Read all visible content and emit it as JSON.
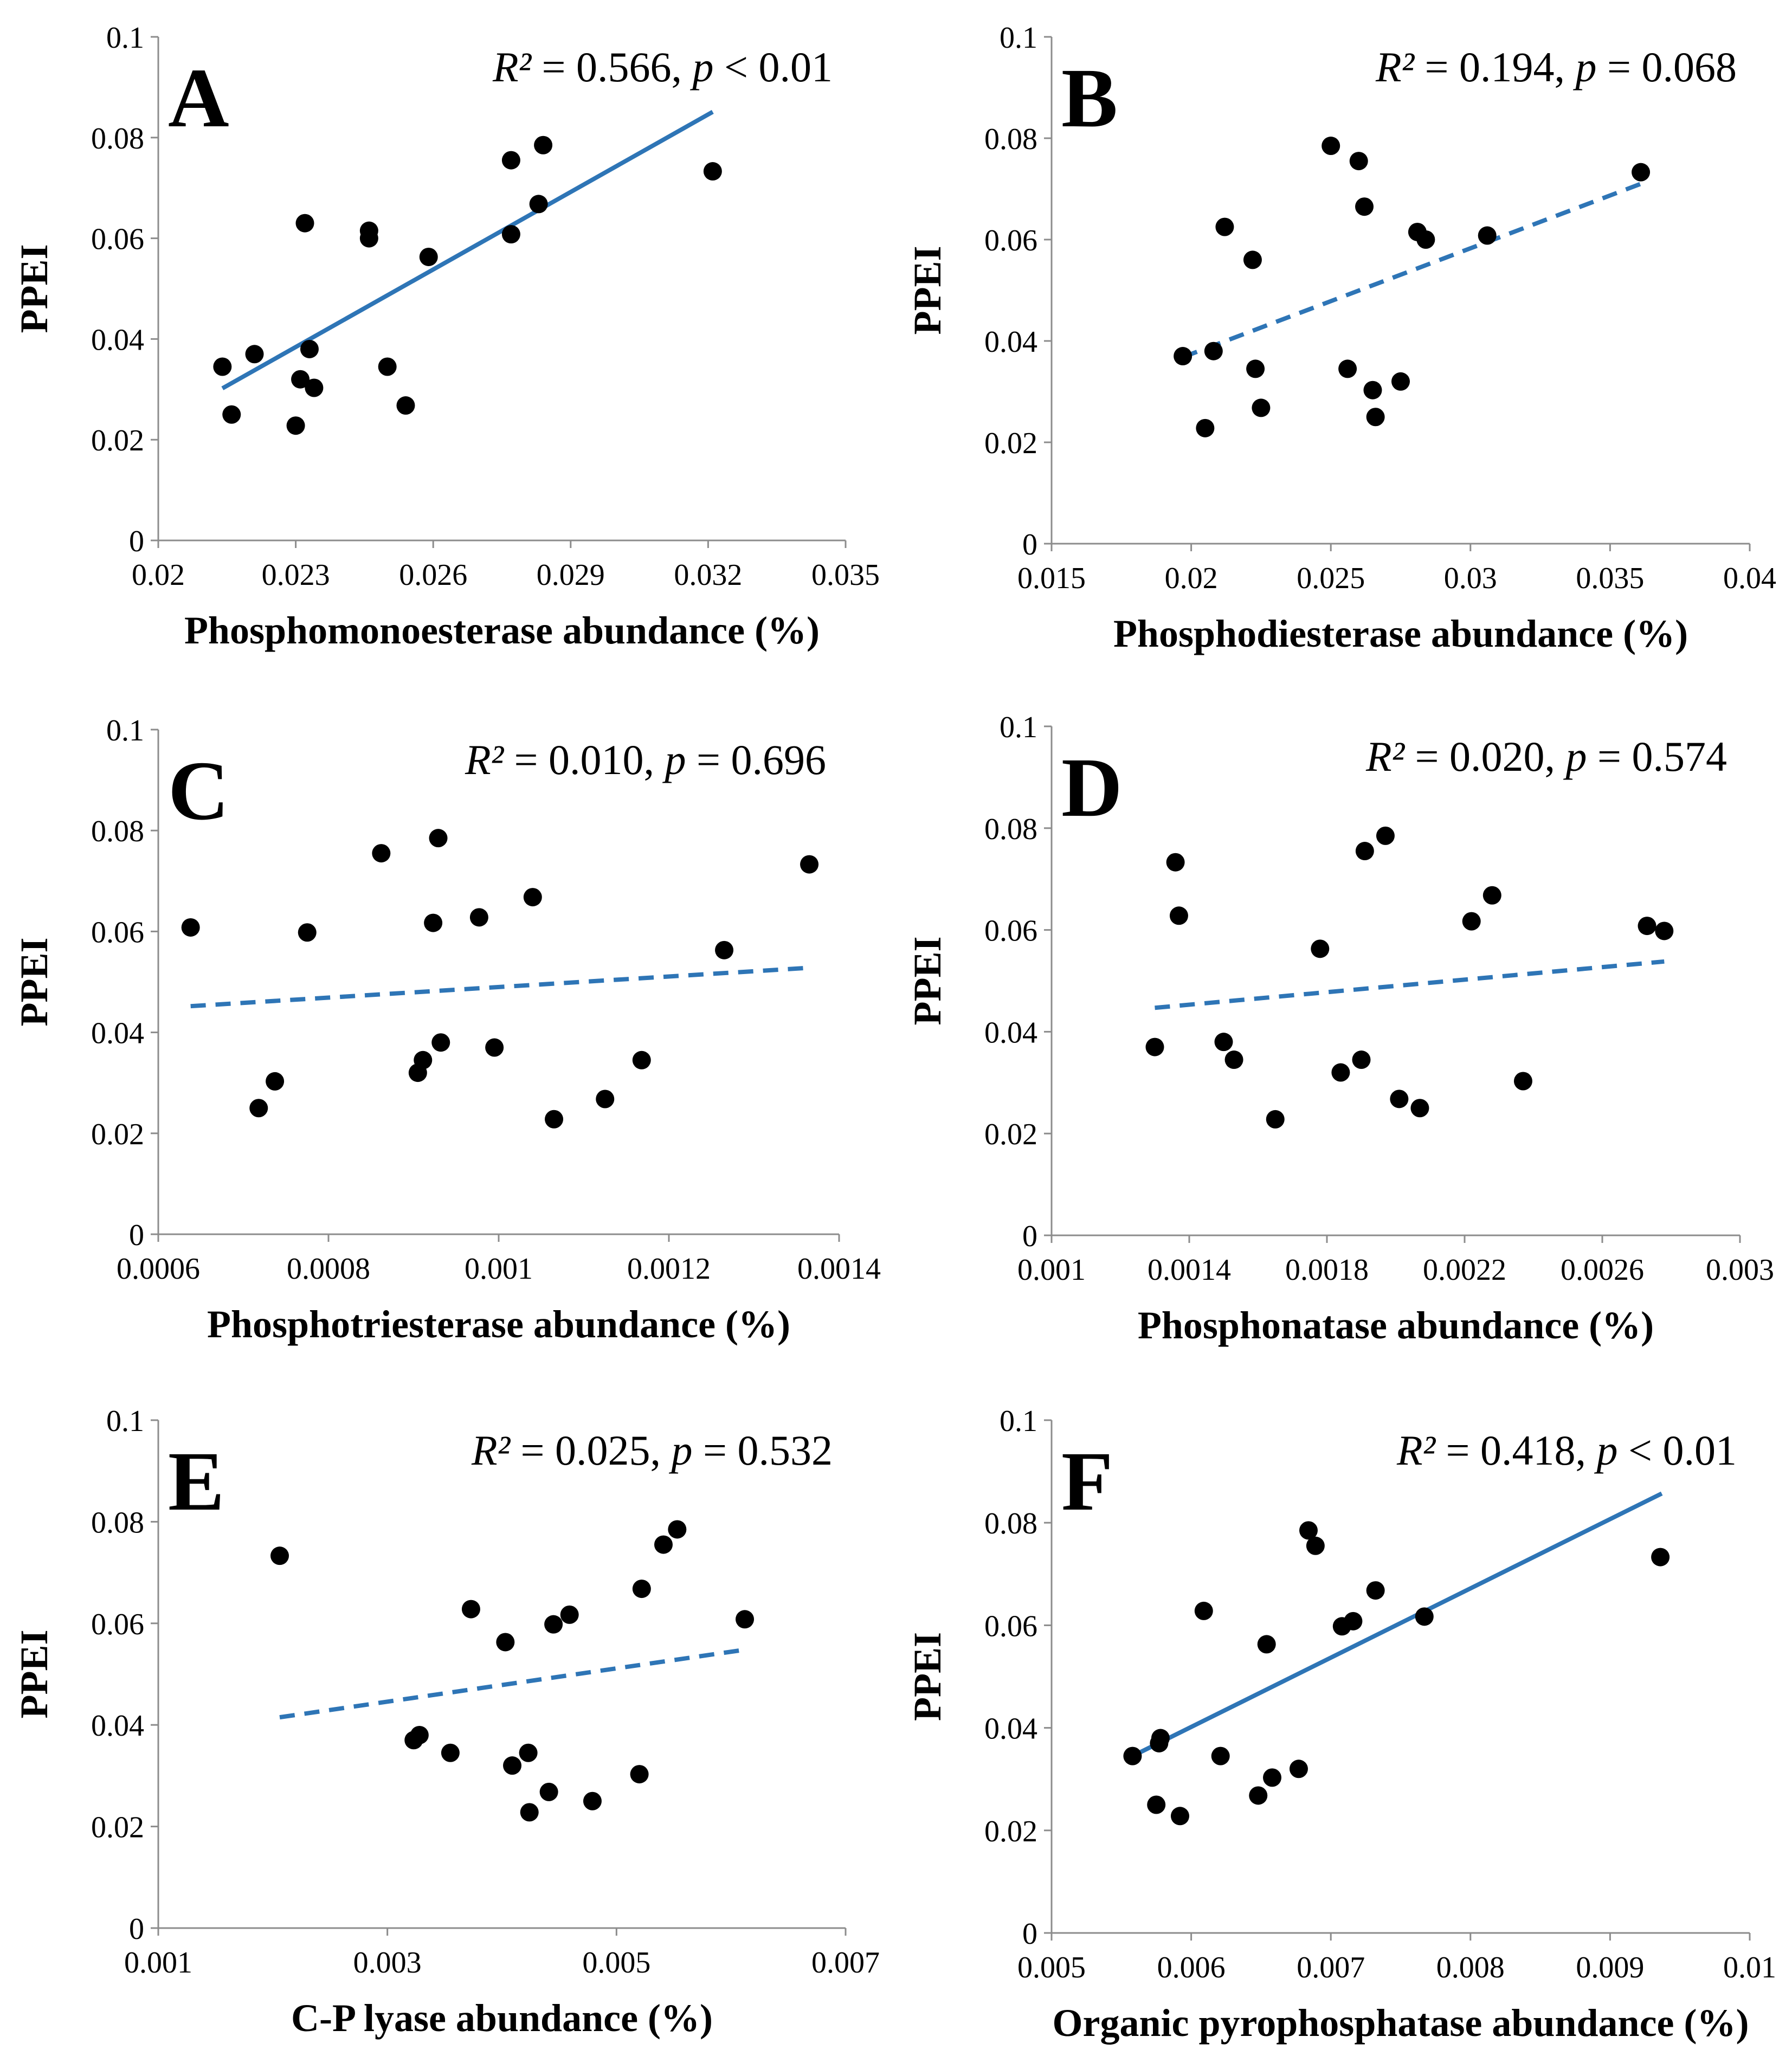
{
  "figure": {
    "type": "scatter-panels",
    "accent_color": "#2e75b6",
    "point_color": "#000000"
  },
  "chart_data": [
    {
      "type": "scatter",
      "panel": "A",
      "xlabel": "Phosphomonoesterase abundance (%)",
      "ylabel": "PPEI",
      "xlim": [
        0.02,
        0.035
      ],
      "ylim": [
        0,
        0.1
      ],
      "xticks": [
        "0.02",
        "0.023",
        "0.026",
        "0.029",
        "0.032",
        "0.035"
      ],
      "xtick_values": [
        0.02,
        0.023,
        0.026,
        0.029,
        0.032,
        0.035
      ],
      "yticks": [
        "0",
        "0.02",
        "0.04",
        "0.06",
        "0.08",
        "0.1"
      ],
      "ytick_values": [
        0,
        0.02,
        0.04,
        0.06,
        0.08,
        0.1
      ],
      "stat": {
        "r2_value": "0.566",
        "p_op": "<",
        "p_value": "0.01"
      },
      "trend": {
        "style": "solid",
        "x": [
          0.0214,
          0.0321
        ],
        "y": [
          0.0302,
          0.0851
        ]
      },
      "points": [
        {
          "x": 0.0214,
          "y": 0.0345
        },
        {
          "x": 0.0216,
          "y": 0.025
        },
        {
          "x": 0.0221,
          "y": 0.037
        },
        {
          "x": 0.023,
          "y": 0.0228
        },
        {
          "x": 0.0231,
          "y": 0.032
        },
        {
          "x": 0.0232,
          "y": 0.063
        },
        {
          "x": 0.0233,
          "y": 0.038
        },
        {
          "x": 0.0234,
          "y": 0.0303
        },
        {
          "x": 0.0246,
          "y": 0.06
        },
        {
          "x": 0.0246,
          "y": 0.0615
        },
        {
          "x": 0.025,
          "y": 0.0345
        },
        {
          "x": 0.0254,
          "y": 0.0268
        },
        {
          "x": 0.0259,
          "y": 0.0563
        },
        {
          "x": 0.0277,
          "y": 0.0755
        },
        {
          "x": 0.0277,
          "y": 0.0608
        },
        {
          "x": 0.0283,
          "y": 0.0668
        },
        {
          "x": 0.0284,
          "y": 0.0785
        },
        {
          "x": 0.0321,
          "y": 0.0733
        }
      ]
    },
    {
      "type": "scatter",
      "panel": "B",
      "xlabel": "Phosphodiesterase  abundance (%)",
      "ylabel": "PPEI",
      "xlim": [
        0.015,
        0.04
      ],
      "ylim": [
        0,
        0.1
      ],
      "xticks": [
        "0.015",
        "0.02",
        "0.025",
        "0.03",
        "0.035",
        "0.04"
      ],
      "xtick_values": [
        0.015,
        0.02,
        0.025,
        0.03,
        0.035,
        0.04
      ],
      "yticks": [
        "0",
        "0.02",
        "0.04",
        "0.06",
        "0.08",
        "0.1"
      ],
      "ytick_values": [
        0,
        0.02,
        0.04,
        0.06,
        0.08,
        0.1
      ],
      "stat": {
        "r2_value": "0.194",
        "p_op": "=",
        "p_value": "0.068"
      },
      "trend": {
        "style": "dashed",
        "x": [
          0.0197,
          0.0361
        ],
        "y": [
          0.0368,
          0.071
        ]
      },
      "points": [
        {
          "x": 0.0197,
          "y": 0.037
        },
        {
          "x": 0.0205,
          "y": 0.0228
        },
        {
          "x": 0.0208,
          "y": 0.038
        },
        {
          "x": 0.0212,
          "y": 0.0625
        },
        {
          "x": 0.0222,
          "y": 0.056
        },
        {
          "x": 0.0223,
          "y": 0.0345
        },
        {
          "x": 0.0225,
          "y": 0.0268
        },
        {
          "x": 0.025,
          "y": 0.0785
        },
        {
          "x": 0.0256,
          "y": 0.0345
        },
        {
          "x": 0.026,
          "y": 0.0755
        },
        {
          "x": 0.0262,
          "y": 0.0665
        },
        {
          "x": 0.0265,
          "y": 0.0303
        },
        {
          "x": 0.0266,
          "y": 0.025
        },
        {
          "x": 0.0275,
          "y": 0.032
        },
        {
          "x": 0.0281,
          "y": 0.0615
        },
        {
          "x": 0.0284,
          "y": 0.06
        },
        {
          "x": 0.0306,
          "y": 0.0608
        },
        {
          "x": 0.0361,
          "y": 0.0733
        }
      ]
    },
    {
      "type": "scatter",
      "panel": "C",
      "xlabel": "Phosphotriesterase  abundance (%)",
      "ylabel": "PPEI",
      "xlim": [
        0.0006,
        0.0014
      ],
      "ylim": [
        0,
        0.1
      ],
      "xticks": [
        "0.0006",
        "0.0008",
        "0.001",
        "0.0012",
        "0.0014"
      ],
      "xtick_values": [
        0.0006,
        0.0008,
        0.001,
        0.0012,
        0.0014
      ],
      "yticks": [
        "0",
        "0.02",
        "0.04",
        "0.06",
        "0.08",
        "0.1"
      ],
      "ytick_values": [
        0,
        0.02,
        0.04,
        0.06,
        0.08,
        0.1
      ],
      "stat": {
        "r2_value": "0.010",
        "p_op": "=",
        "p_value": "0.696"
      },
      "trend": {
        "style": "dashed",
        "x": [
          0.000638,
          0.001365
        ],
        "y": [
          0.0452,
          0.0528
        ]
      },
      "points": [
        {
          "x": 0.000638,
          "y": 0.0608
        },
        {
          "x": 0.000718,
          "y": 0.025
        },
        {
          "x": 0.000737,
          "y": 0.0303
        },
        {
          "x": 0.000775,
          "y": 0.0598
        },
        {
          "x": 0.000862,
          "y": 0.0755
        },
        {
          "x": 0.000905,
          "y": 0.032
        },
        {
          "x": 0.000911,
          "y": 0.0345
        },
        {
          "x": 0.000923,
          "y": 0.0617
        },
        {
          "x": 0.000929,
          "y": 0.0785
        },
        {
          "x": 0.000932,
          "y": 0.038
        },
        {
          "x": 0.000977,
          "y": 0.0628
        },
        {
          "x": 0.000995,
          "y": 0.037
        },
        {
          "x": 0.00104,
          "y": 0.0668
        },
        {
          "x": 0.001065,
          "y": 0.0228
        },
        {
          "x": 0.001125,
          "y": 0.0268
        },
        {
          "x": 0.001168,
          "y": 0.0345
        },
        {
          "x": 0.001265,
          "y": 0.0563
        },
        {
          "x": 0.001365,
          "y": 0.0733
        }
      ]
    },
    {
      "type": "scatter",
      "panel": "D",
      "xlabel": "Phosphonatase  abundance (%)",
      "ylabel": "PPEI",
      "xlim": [
        0.001,
        0.003
      ],
      "ylim": [
        0,
        0.1
      ],
      "xticks": [
        "0.001",
        "0.0014",
        "0.0018",
        "0.0022",
        "0.0026",
        "0.003"
      ],
      "xtick_values": [
        0.001,
        0.0014,
        0.0018,
        0.0022,
        0.0026,
        0.003
      ],
      "yticks": [
        "0",
        "0.02",
        "0.04",
        "0.06",
        "0.08",
        "0.1"
      ],
      "ytick_values": [
        0,
        0.02,
        0.04,
        0.06,
        0.08,
        0.1
      ],
      "stat": {
        "r2_value": "0.020",
        "p_op": "=",
        "p_value": "0.574"
      },
      "trend": {
        "style": "dashed",
        "x": [
          0.0013,
          0.00278
        ],
        "y": [
          0.0447,
          0.0538
        ]
      },
      "points": [
        {
          "x": 0.0013,
          "y": 0.037
        },
        {
          "x": 0.00136,
          "y": 0.0733
        },
        {
          "x": 0.00137,
          "y": 0.0628
        },
        {
          "x": 0.0015,
          "y": 0.038
        },
        {
          "x": 0.00153,
          "y": 0.0345
        },
        {
          "x": 0.00165,
          "y": 0.0228
        },
        {
          "x": 0.00178,
          "y": 0.0563
        },
        {
          "x": 0.00184,
          "y": 0.032
        },
        {
          "x": 0.0019,
          "y": 0.0345
        },
        {
          "x": 0.00191,
          "y": 0.0755
        },
        {
          "x": 0.00197,
          "y": 0.0785
        },
        {
          "x": 0.00201,
          "y": 0.0268
        },
        {
          "x": 0.00207,
          "y": 0.025
        },
        {
          "x": 0.00222,
          "y": 0.0617
        },
        {
          "x": 0.00228,
          "y": 0.0668
        },
        {
          "x": 0.00237,
          "y": 0.0303
        },
        {
          "x": 0.00273,
          "y": 0.0608
        },
        {
          "x": 0.00278,
          "y": 0.0598
        }
      ]
    },
    {
      "type": "scatter",
      "panel": "E",
      "xlabel": "C-P lyase  abundance (%)",
      "ylabel": "PPEI",
      "xlim": [
        0.001,
        0.007
      ],
      "ylim": [
        0,
        0.1
      ],
      "xticks": [
        "0.001",
        "0.003",
        "0.005",
        "0.007"
      ],
      "xtick_values": [
        0.001,
        0.003,
        0.005,
        0.007
      ],
      "yticks": [
        "0",
        "0.02",
        "0.04",
        "0.06",
        "0.08",
        "0.1"
      ],
      "ytick_values": [
        0,
        0.02,
        0.04,
        0.06,
        0.08,
        0.1
      ],
      "stat": {
        "r2_value": "0.025",
        "p_op": "=",
        "p_value": "0.532"
      },
      "trend": {
        "style": "dashed",
        "x": [
          0.00206,
          0.00612
        ],
        "y": [
          0.0415,
          0.0548
        ]
      },
      "points": [
        {
          "x": 0.00206,
          "y": 0.0733
        },
        {
          "x": 0.00323,
          "y": 0.037
        },
        {
          "x": 0.00328,
          "y": 0.038
        },
        {
          "x": 0.00355,
          "y": 0.0345
        },
        {
          "x": 0.00373,
          "y": 0.0628
        },
        {
          "x": 0.00403,
          "y": 0.0563
        },
        {
          "x": 0.00409,
          "y": 0.032
        },
        {
          "x": 0.00423,
          "y": 0.0345
        },
        {
          "x": 0.00424,
          "y": 0.0228
        },
        {
          "x": 0.00441,
          "y": 0.0268
        },
        {
          "x": 0.00445,
          "y": 0.0598
        },
        {
          "x": 0.00459,
          "y": 0.0617
        },
        {
          "x": 0.00479,
          "y": 0.025
        },
        {
          "x": 0.0052,
          "y": 0.0303
        },
        {
          "x": 0.00522,
          "y": 0.0668
        },
        {
          "x": 0.00541,
          "y": 0.0755
        },
        {
          "x": 0.00553,
          "y": 0.0785
        },
        {
          "x": 0.00612,
          "y": 0.0608
        }
      ]
    },
    {
      "type": "scatter",
      "panel": "F",
      "xlabel": "Organic pyrophosphatase  abundance (%)",
      "ylabel": "PPEI",
      "xlim": [
        0.005,
        0.01
      ],
      "ylim": [
        0,
        0.1
      ],
      "xticks": [
        "0.005",
        "0.006",
        "0.007",
        "0.008",
        "0.009",
        "0.01"
      ],
      "xtick_values": [
        0.005,
        0.006,
        0.007,
        0.008,
        0.009,
        0.01
      ],
      "yticks": [
        "0",
        "0.02",
        "0.04",
        "0.06",
        "0.08",
        "0.1"
      ],
      "ytick_values": [
        0,
        0.02,
        0.04,
        0.06,
        0.08,
        0.1
      ],
      "stat": {
        "r2_value": "0.418",
        "p_op": "<",
        "p_value": "0.01"
      },
      "trend": {
        "style": "solid",
        "x": [
          0.00558,
          0.00937
        ],
        "y": [
          0.0345,
          0.0857
        ]
      },
      "points": [
        {
          "x": 0.00558,
          "y": 0.0345
        },
        {
          "x": 0.00575,
          "y": 0.025
        },
        {
          "x": 0.00577,
          "y": 0.037
        },
        {
          "x": 0.00578,
          "y": 0.038
        },
        {
          "x": 0.00592,
          "y": 0.0228
        },
        {
          "x": 0.00609,
          "y": 0.0628
        },
        {
          "x": 0.00621,
          "y": 0.0345
        },
        {
          "x": 0.00648,
          "y": 0.0268
        },
        {
          "x": 0.00654,
          "y": 0.0563
        },
        {
          "x": 0.00658,
          "y": 0.0303
        },
        {
          "x": 0.00677,
          "y": 0.032
        },
        {
          "x": 0.00684,
          "y": 0.0785
        },
        {
          "x": 0.00689,
          "y": 0.0755
        },
        {
          "x": 0.00708,
          "y": 0.0598
        },
        {
          "x": 0.00716,
          "y": 0.0608
        },
        {
          "x": 0.00732,
          "y": 0.0668
        },
        {
          "x": 0.00767,
          "y": 0.0617
        },
        {
          "x": 0.00936,
          "y": 0.0733
        }
      ]
    }
  ]
}
